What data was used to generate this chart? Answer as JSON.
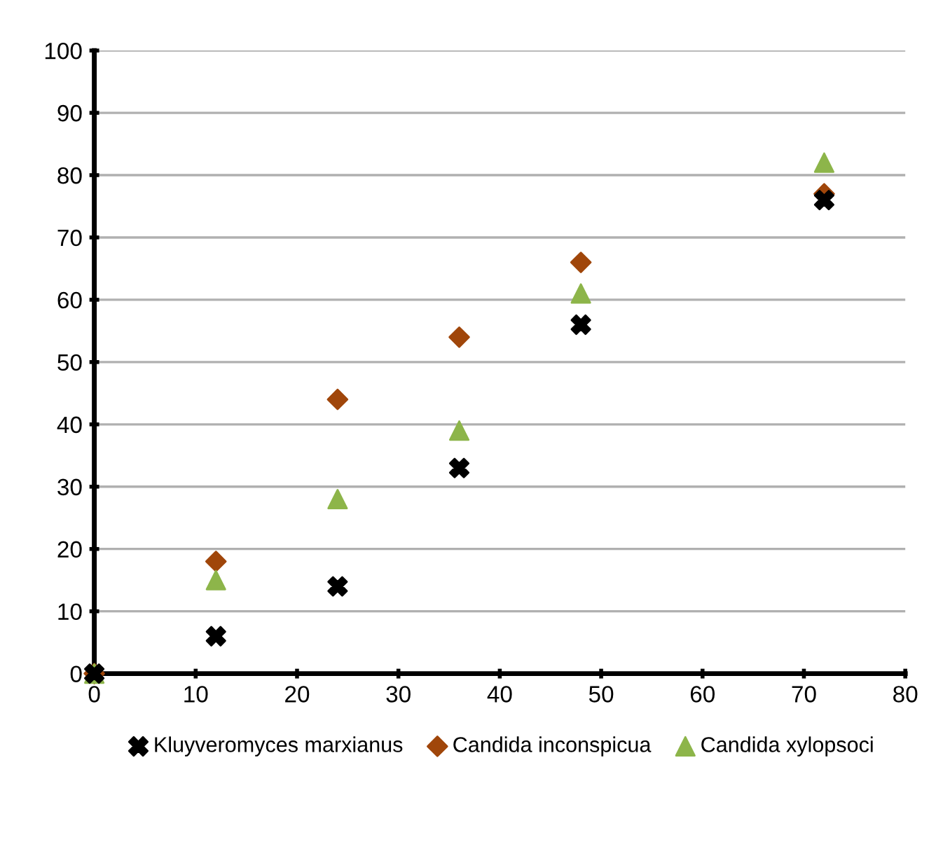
{
  "chart_data": {
    "type": "scatter",
    "xlim": [
      0,
      80
    ],
    "xticks": [
      0,
      10,
      20,
      30,
      40,
      50,
      60,
      70,
      80
    ],
    "ylim": [
      0,
      100
    ],
    "yticks": [
      0,
      10,
      20,
      30,
      40,
      50,
      60,
      70,
      80,
      90,
      100
    ],
    "grid": "y",
    "legend": "bottom",
    "series": [
      {
        "name": "Kluyveromyces marxianus",
        "color": "#000000",
        "marker": "cross",
        "x": [
          0,
          12,
          24,
          36,
          48,
          72
        ],
        "values": [
          0,
          6,
          14,
          33,
          56,
          76
        ]
      },
      {
        "name": "Candida inconspicua",
        "color": "#a0460a",
        "marker": "diamond",
        "x": [
          0,
          12,
          24,
          36,
          48,
          72
        ],
        "values": [
          0,
          18,
          44,
          54,
          66,
          77
        ]
      },
      {
        "name": "Candida xylopsoci",
        "color": "#8db54a",
        "marker": "triangle",
        "x": [
          0,
          12,
          24,
          36,
          48,
          72
        ],
        "values": [
          0,
          15,
          28,
          39,
          61,
          82
        ]
      }
    ]
  }
}
